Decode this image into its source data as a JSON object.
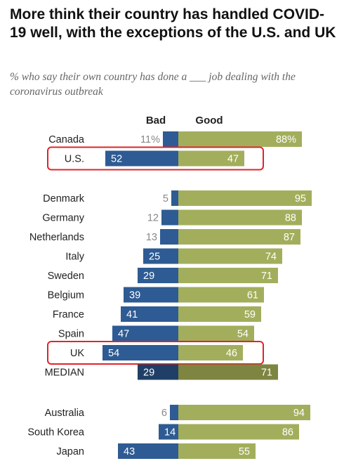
{
  "title": "More think their country has handled COVID-19 well, with the exceptions of the U.S. and UK",
  "subtitle": "% who say their own country has done a ___ job dealing with the coronavirus outbreak",
  "colors": {
    "bad": "#2e5b93",
    "good": "#a3ae5c",
    "median_bad": "#1f3f66",
    "median_good": "#7d8540",
    "highlight": "#e0242b"
  },
  "chart_data": {
    "type": "bar",
    "orientation": "horizontal-diverging",
    "headers": {
      "bad": "Bad",
      "good": "Good"
    },
    "groups": [
      {
        "rows": [
          {
            "label": "Canada",
            "bad": 11,
            "good": 88,
            "bad_text": "11%",
            "good_text": "88%",
            "highlight": false
          },
          {
            "label": "U.S.",
            "bad": 52,
            "good": 47,
            "bad_text": "52",
            "good_text": "47",
            "highlight": true
          }
        ]
      },
      {
        "rows": [
          {
            "label": "Denmark",
            "bad": 5,
            "good": 95,
            "bad_text": "5",
            "good_text": "95",
            "highlight": false
          },
          {
            "label": "Germany",
            "bad": 12,
            "good": 88,
            "bad_text": "12",
            "good_text": "88",
            "highlight": false
          },
          {
            "label": "Netherlands",
            "bad": 13,
            "good": 87,
            "bad_text": "13",
            "good_text": "87",
            "highlight": false
          },
          {
            "label": "Italy",
            "bad": 25,
            "good": 74,
            "bad_text": "25",
            "good_text": "74",
            "highlight": false
          },
          {
            "label": "Sweden",
            "bad": 29,
            "good": 71,
            "bad_text": "29",
            "good_text": "71",
            "highlight": false
          },
          {
            "label": "Belgium",
            "bad": 39,
            "good": 61,
            "bad_text": "39",
            "good_text": "61",
            "highlight": false
          },
          {
            "label": "France",
            "bad": 41,
            "good": 59,
            "bad_text": "41",
            "good_text": "59",
            "highlight": false
          },
          {
            "label": "Spain",
            "bad": 47,
            "good": 54,
            "bad_text": "47",
            "good_text": "54",
            "highlight": false
          },
          {
            "label": "UK",
            "bad": 54,
            "good": 46,
            "bad_text": "54",
            "good_text": "46",
            "highlight": true
          },
          {
            "label": "MEDIAN",
            "bad": 29,
            "good": 71,
            "bad_text": "29",
            "good_text": "71",
            "highlight": false,
            "median": true
          }
        ]
      },
      {
        "rows": [
          {
            "label": "Australia",
            "bad": 6,
            "good": 94,
            "bad_text": "6",
            "good_text": "94",
            "highlight": false
          },
          {
            "label": "South Korea",
            "bad": 14,
            "good": 86,
            "bad_text": "14",
            "good_text": "86",
            "highlight": false
          },
          {
            "label": "Japan",
            "bad": 43,
            "good": 55,
            "bad_text": "43",
            "good_text": "55",
            "highlight": false
          }
        ]
      }
    ]
  }
}
